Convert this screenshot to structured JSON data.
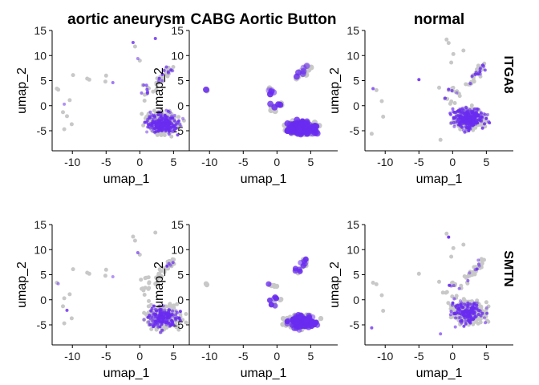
{
  "chart_data": {
    "type": "scatter",
    "plot_kind": "feature-plot-grid",
    "columns": [
      "aortic aneurysm",
      "CABG Aortic Button",
      "normal"
    ],
    "rows": [
      "ITGA8",
      "SMTN"
    ],
    "xlabel": "umap_1",
    "ylabel": "umap_2",
    "xlim": [
      -13,
      9
    ],
    "ylim": [
      -9,
      15
    ],
    "x_ticks": [
      -10,
      -5,
      0,
      5
    ],
    "y_ticks": [
      -5,
      0,
      5,
      10,
      15
    ],
    "colors": {
      "low": "#c8c8c8",
      "high": "#6a2cf0"
    },
    "grid": false,
    "legend": "none"
  }
}
